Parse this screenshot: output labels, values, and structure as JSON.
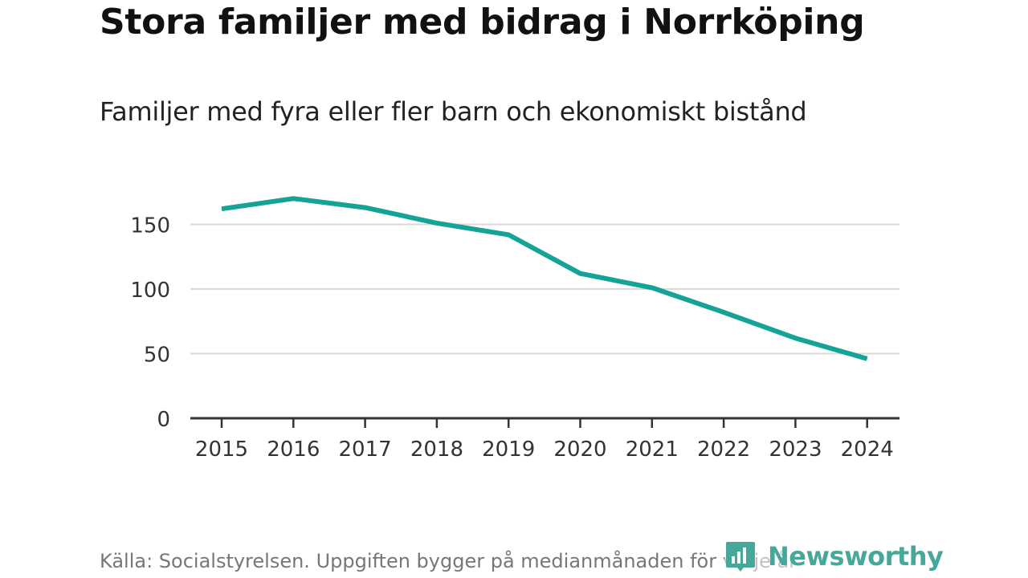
{
  "header": {
    "title": "Stora familjer med bidrag i Norrköping",
    "subtitle": "Familjer med fyra eller fler barn och ekonomiskt bistånd"
  },
  "footer": {
    "source": "Källa: Socialstyrelsen. Uppgiften bygger på medianmånaden för varje år",
    "brand": "Newsworthy",
    "brand_icon": "newsworthy-logo-icon"
  },
  "colors": {
    "line": "#14a396",
    "grid": "#d9d9d9",
    "axis": "#333333",
    "brand": "#46a89a"
  },
  "chart_data": {
    "type": "line",
    "title": "Stora familjer med bidrag i Norrköping",
    "subtitle": "Familjer med fyra eller fler barn och ekonomiskt bistånd",
    "xlabel": "",
    "ylabel": "",
    "x": [
      "2015",
      "2016",
      "2017",
      "2018",
      "2019",
      "2020",
      "2021",
      "2022",
      "2023",
      "2024"
    ],
    "series": [
      {
        "name": "Familjer med fyra eller fler barn och ekonomiskt bistånd",
        "values": [
          162,
          170,
          163,
          151,
          142,
          112,
          101,
          82,
          62,
          46
        ]
      }
    ],
    "ylim": [
      0,
      170
    ],
    "yticks": [
      0,
      50,
      100,
      150
    ],
    "grid": true,
    "legend": "none"
  }
}
